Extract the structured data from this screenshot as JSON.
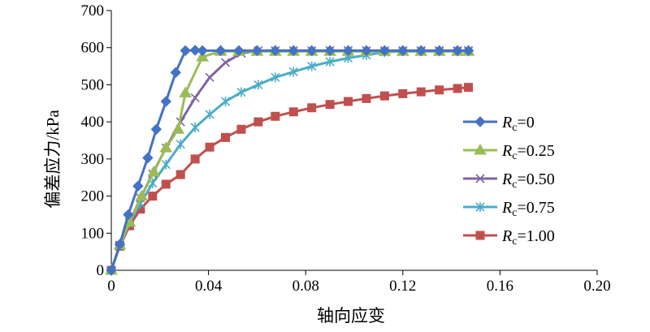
{
  "chart_data": {
    "type": "line",
    "title": "",
    "xlabel": "轴向应变",
    "ylabel": "偏差应力/kPa",
    "xlim": [
      0,
      0.2
    ],
    "ylim": [
      0,
      700
    ],
    "x_ticks": [
      "0",
      "0.04",
      "0.08",
      "0.12",
      "0.16",
      "0.20"
    ],
    "y_ticks": [
      "0",
      "100",
      "200",
      "300",
      "400",
      "500",
      "600",
      "700"
    ],
    "grid": false,
    "legend_position": "right",
    "series": [
      {
        "name": "Rc=0",
        "legend_var": "R",
        "legend_sub": "c",
        "legend_value": "=0",
        "color": "#4472C4",
        "marker": "diamond",
        "x": [
          0,
          0.0035,
          0.007,
          0.011,
          0.015,
          0.0185,
          0.0225,
          0.0265,
          0.0305,
          0.0345,
          0.0375,
          0.045,
          0.0525,
          0.06,
          0.0675,
          0.075,
          0.0825,
          0.09,
          0.0975,
          0.105,
          0.1125,
          0.12,
          0.1275,
          0.135,
          0.1425,
          0.147
        ],
        "y": [
          0,
          70,
          150,
          227,
          303,
          380,
          455,
          533,
          592,
          593,
          592,
          592,
          592,
          592,
          592,
          592,
          592,
          592,
          592,
          592,
          592,
          592,
          592,
          592,
          592,
          592
        ]
      },
      {
        "name": "Rc=0.25",
        "legend_var": "R",
        "legend_sub": "c",
        "legend_value": "=0.25",
        "color": "#9BBB59",
        "marker": "triangle",
        "x": [
          0,
          0.0035,
          0.0075,
          0.0125,
          0.0175,
          0.0225,
          0.0275,
          0.0305,
          0.0375,
          0.045,
          0.0525,
          0.06,
          0.0675,
          0.075,
          0.0825,
          0.09,
          0.0975,
          0.105,
          0.1125,
          0.12,
          0.1275,
          0.135,
          0.1425,
          0.147
        ],
        "y": [
          0,
          68,
          130,
          200,
          265,
          330,
          380,
          478,
          575,
          590,
          590,
          590,
          590,
          590,
          590,
          590,
          590,
          590,
          590,
          590,
          590,
          590,
          590,
          590
        ]
      },
      {
        "name": "Rc=0.50",
        "legend_var": "R",
        "legend_sub": "c",
        "legend_value": "=0.50",
        "color": "#8064A2",
        "marker": "x",
        "x": [
          0,
          0.0035,
          0.0075,
          0.012,
          0.017,
          0.0225,
          0.0285,
          0.0345,
          0.0405,
          0.047,
          0.0535,
          0.0605,
          0.0675,
          0.075,
          0.0825,
          0.09,
          0.0975,
          0.105,
          0.1125,
          0.12,
          0.1275,
          0.135,
          0.1425,
          0.147
        ],
        "y": [
          0,
          68,
          130,
          195,
          260,
          330,
          400,
          465,
          520,
          560,
          585,
          592,
          592,
          592,
          592,
          592,
          592,
          592,
          592,
          592,
          592,
          592,
          592,
          592
        ]
      },
      {
        "name": "Rc=0.75",
        "legend_var": "R",
        "legend_sub": "c",
        "legend_value": "=0.75",
        "color": "#4BACC6",
        "marker": "asterisk",
        "x": [
          0,
          0.0035,
          0.0075,
          0.012,
          0.017,
          0.0225,
          0.0285,
          0.0345,
          0.0405,
          0.047,
          0.0535,
          0.0605,
          0.0675,
          0.075,
          0.0825,
          0.09,
          0.0975,
          0.105,
          0.1125,
          0.12,
          0.1275,
          0.135,
          0.1425,
          0.147
        ],
        "y": [
          0,
          68,
          128,
          180,
          235,
          285,
          340,
          385,
          420,
          455,
          480,
          500,
          520,
          535,
          550,
          562,
          572,
          580,
          588,
          590,
          590,
          590,
          590,
          590
        ]
      },
      {
        "name": "Rc=1.00",
        "legend_var": "R",
        "legend_sub": "c",
        "legend_value": "=1.00",
        "color": "#C0504D",
        "marker": "square",
        "x": [
          0,
          0.0035,
          0.0075,
          0.012,
          0.017,
          0.0225,
          0.0285,
          0.0345,
          0.0405,
          0.047,
          0.0535,
          0.0605,
          0.0675,
          0.075,
          0.0825,
          0.09,
          0.0975,
          0.105,
          0.1125,
          0.12,
          0.1275,
          0.135,
          0.1425,
          0.147
        ],
        "y": [
          0,
          65,
          120,
          165,
          200,
          232,
          258,
          300,
          332,
          358,
          380,
          400,
          415,
          427,
          438,
          447,
          455,
          463,
          470,
          476,
          481,
          486,
          490,
          493
        ]
      }
    ]
  }
}
